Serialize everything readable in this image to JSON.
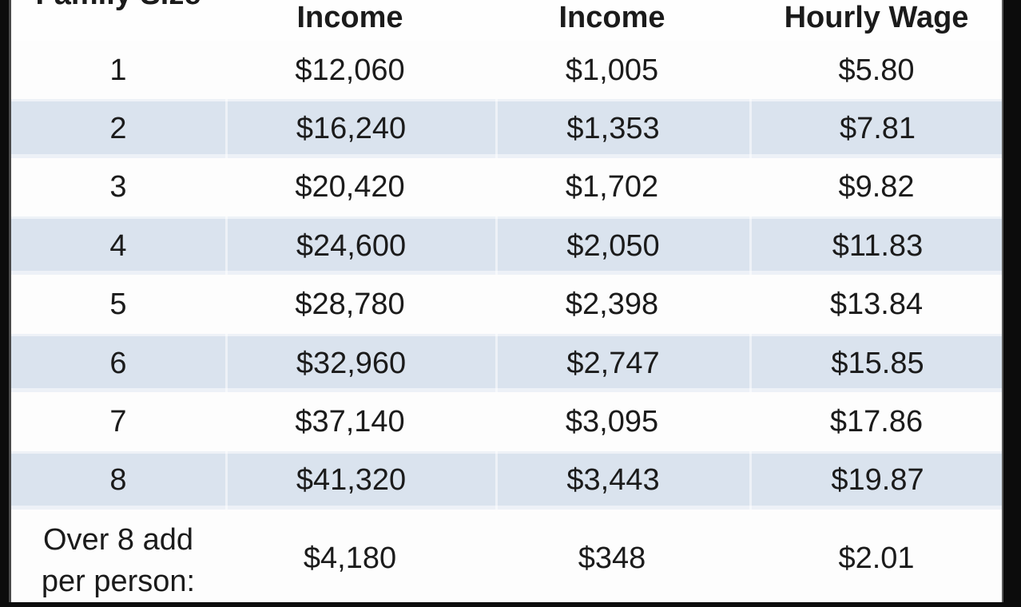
{
  "chart_data": {
    "type": "table",
    "columns": [
      "Family Size",
      "Income",
      "Income",
      "Hourly Wage"
    ],
    "rows": [
      [
        "1",
        "$12,060",
        "$1,005",
        "$5.80"
      ],
      [
        "2",
        "$16,240",
        "$1,353",
        "$7.81"
      ],
      [
        "3",
        "$20,420",
        "$1,702",
        "$9.82"
      ],
      [
        "4",
        "$24,600",
        "$2,050",
        "$11.83"
      ],
      [
        "5",
        "$28,780",
        "$2,398",
        "$13.84"
      ],
      [
        "6",
        "$32,960",
        "$2,747",
        "$15.85"
      ],
      [
        "7",
        "$37,140",
        "$3,095",
        "$17.86"
      ],
      [
        "8",
        "$41,320",
        "$3,443",
        "$19.87"
      ],
      [
        "Over 8 add per person:",
        "$4,180",
        "$348",
        "$2.01"
      ]
    ],
    "layout": {
      "striped": true,
      "stripe_rows": [
        2,
        4,
        6,
        8
      ],
      "header_clipped_at_top": true,
      "last_row_clipped_at_bottom": true
    }
  },
  "colors": {
    "stripe_blue": "#dae3ee",
    "row_white": "#fdfdfd",
    "frame_black": "#0c0c0c",
    "text": "#1b1b1b"
  }
}
